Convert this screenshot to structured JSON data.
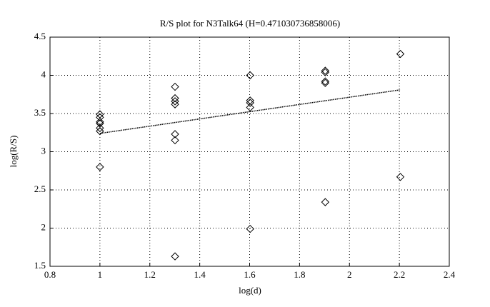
{
  "chart_data": {
    "type": "scatter",
    "title": "R/S plot for N3Talk64 (H=0.471030736858006)",
    "xlabel": "log(d)",
    "ylabel": "log(R/S)",
    "x": [
      1,
      1,
      1,
      1,
      1,
      1,
      1,
      1.301,
      1.301,
      1.301,
      1.301,
      1.301,
      1.301,
      1.301,
      1.602,
      1.602,
      1.602,
      1.602,
      1.602,
      1.903,
      1.903,
      1.903,
      1.903,
      1.903,
      2.204,
      2.204
    ],
    "values": [
      3.49,
      3.45,
      3.39,
      3.37,
      3.31,
      3.27,
      2.8,
      3.85,
      3.7,
      3.66,
      3.62,
      3.23,
      3.15,
      1.63,
      4.0,
      3.67,
      3.64,
      3.58,
      1.99,
      4.06,
      4.04,
      3.92,
      3.9,
      2.34,
      4.28,
      2.67
    ],
    "color": "#000000",
    "fit_x": [
      1,
      2.204
    ],
    "fit_values": [
      3.24,
      3.81
    ],
    "xlim": [
      0.8,
      2.4
    ],
    "xticks": [
      0.8,
      1,
      1.2,
      1.4,
      1.6,
      1.8,
      2,
      2.2,
      2.4
    ],
    "ylim": [
      1.5,
      4.5
    ],
    "yticks": [
      1.5,
      2,
      2.5,
      3,
      3.5,
      4,
      4.5
    ],
    "grid": true
  }
}
